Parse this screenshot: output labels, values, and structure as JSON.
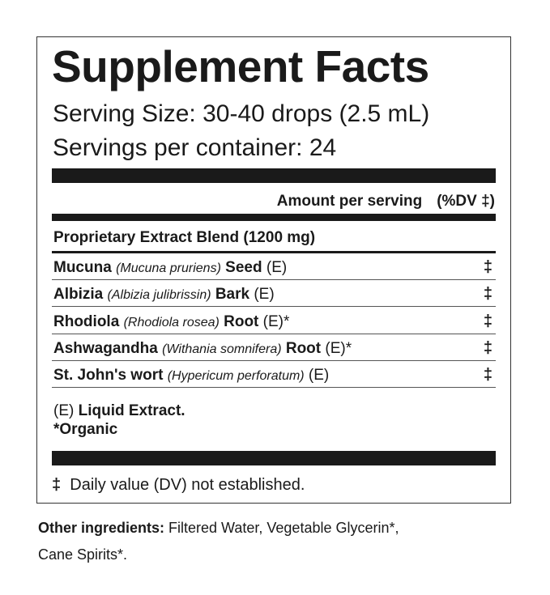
{
  "title": "Supplement Facts",
  "serving_size": "Serving Size: 30-40 drops (2.5 mL)",
  "servings_per_container": "Servings per container: 24",
  "header": {
    "amount": "Amount per serving",
    "dv": "(%DV ‡)"
  },
  "blend": "Proprietary Extract Blend (1200 mg)",
  "ingredients": [
    {
      "name": "Mucuna",
      "latin": "(Mucuna pruriens)",
      "part": "Seed",
      "suffix": "(E)",
      "dv": "‡"
    },
    {
      "name": "Albizia",
      "latin": "(Albizia julibrissin)",
      "part": "Bark",
      "suffix": "(E)",
      "dv": "‡"
    },
    {
      "name": "Rhodiola",
      "latin": "(Rhodiola rosea)",
      "part": "Root",
      "suffix": "(E)*",
      "dv": "‡"
    },
    {
      "name": "Ashwagandha",
      "latin": "(Withania somnifera)",
      "part": "Root",
      "suffix": "(E)*",
      "dv": "‡"
    },
    {
      "name": "St. John's wort",
      "latin": "(Hypericum perforatum)",
      "part": "",
      "suffix": "(E)",
      "dv": "‡"
    }
  ],
  "notes": {
    "e_prefix": "(E)",
    "e_label": "Liquid Extract.",
    "organic": "*Organic"
  },
  "dv_note": {
    "symbol": "‡",
    "text": "Daily value (DV) not established."
  },
  "other": {
    "label": "Other ingredients:",
    "line1": "Filtered Water, Vegetable Glycerin*,",
    "line2": "Cane Spirits*."
  }
}
